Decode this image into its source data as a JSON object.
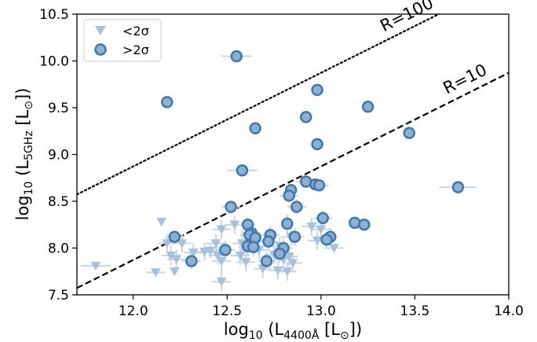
{
  "chart_data": {
    "type": "scatter",
    "xlabel_main": "log",
    "xlabel_sub": "10",
    "xlabel_paren_open": " (L",
    "xlabel_lsub": "4400Å",
    "xlabel_unit": " [L",
    "xlabel_odot": "⊙",
    "xlabel_close": "])",
    "ylabel_main": "log",
    "ylabel_sub": "10",
    "ylabel_paren_open": " (L",
    "ylabel_lsub": "5GHz",
    "ylabel_unit": " [L",
    "ylabel_odot": "⊙",
    "ylabel_close": "])",
    "xlim": [
      11.7,
      14.0
    ],
    "ylim": [
      7.5,
      10.5
    ],
    "xticks": [
      "12.0",
      "12.5",
      "13.0",
      "13.5",
      "14.0"
    ],
    "xtick_values": [
      12.0,
      12.5,
      13.0,
      13.5,
      14.0
    ],
    "yticks": [
      "7.5",
      "8.0",
      "8.5",
      "9.0",
      "9.5",
      "10.0",
      "10.5"
    ],
    "ytick_values": [
      7.5,
      8.0,
      8.5,
      9.0,
      9.5,
      10.0,
      10.5
    ],
    "legend": {
      "placement": "top-left",
      "items": [
        {
          "label": "<2σ",
          "marker": "triangle-down"
        },
        {
          "label": ">2σ",
          "marker": "circle"
        }
      ]
    },
    "colors": {
      "detected_fill": "#8fb0d0",
      "detected_edge": "#3d79ad",
      "upper_limit_fill": "#a9c1db",
      "errorbar": "#c4d6e8"
    },
    "reference_lines": [
      {
        "label": "R=100",
        "style": "dotted",
        "intercept_y": 8.573,
        "slope": 1
      },
      {
        "label": "R=10",
        "style": "dashed",
        "intercept_y": 7.573,
        "slope": 1
      }
    ],
    "series": [
      {
        "name": ">2σ",
        "marker": "circle",
        "points": [
          {
            "x": 12.55,
            "y": 10.05,
            "xerr": 0.08,
            "yerr": 0.0
          },
          {
            "x": 12.18,
            "y": 9.56,
            "xerr": 0.0,
            "yerr": 0.0
          },
          {
            "x": 12.98,
            "y": 9.69,
            "xerr": 0.0,
            "yerr": 0.05
          },
          {
            "x": 13.25,
            "y": 9.51,
            "xerr": 0.0,
            "yerr": 0.0
          },
          {
            "x": 12.92,
            "y": 9.4,
            "xerr": 0.0,
            "yerr": 0.0
          },
          {
            "x": 12.65,
            "y": 9.28,
            "xerr": 0.0,
            "yerr": 0.0
          },
          {
            "x": 13.47,
            "y": 9.23,
            "xerr": 0.0,
            "yerr": 0.0
          },
          {
            "x": 12.98,
            "y": 9.11,
            "xerr": 0.0,
            "yerr": 0.0
          },
          {
            "x": 12.58,
            "y": 8.83,
            "xerr": 0.08,
            "yerr": 0.0
          },
          {
            "x": 12.92,
            "y": 8.71,
            "xerr": 0.05,
            "yerr": 0.05
          },
          {
            "x": 12.97,
            "y": 8.68,
            "xerr": 0.04,
            "yerr": 0.0
          },
          {
            "x": 12.99,
            "y": 8.67,
            "xerr": 0.05,
            "yerr": 0.0
          },
          {
            "x": 13.73,
            "y": 8.65,
            "xerr": 0.1,
            "yerr": 0.0
          },
          {
            "x": 12.84,
            "y": 8.62,
            "xerr": 0.0,
            "yerr": 0.05
          },
          {
            "x": 12.83,
            "y": 8.56,
            "xerr": 0.05,
            "yerr": 0.05
          },
          {
            "x": 12.52,
            "y": 8.44,
            "xerr": 0.05,
            "yerr": 0.05
          },
          {
            "x": 12.87,
            "y": 8.44,
            "xerr": 0.05,
            "yerr": 0.08
          },
          {
            "x": 13.01,
            "y": 8.32,
            "xerr": 0.05,
            "yerr": 0.08
          },
          {
            "x": 12.61,
            "y": 8.25,
            "xerr": 0.04,
            "yerr": 0.08
          },
          {
            "x": 12.82,
            "y": 8.26,
            "xerr": 0.0,
            "yerr": 0.1
          },
          {
            "x": 13.18,
            "y": 8.27,
            "xerr": 0.0,
            "yerr": 0.0
          },
          {
            "x": 13.23,
            "y": 8.25,
            "xerr": 0.0,
            "yerr": 0.0
          },
          {
            "x": 12.63,
            "y": 8.16,
            "xerr": 0.05,
            "yerr": 0.1
          },
          {
            "x": 12.62,
            "y": 8.14,
            "xerr": 0.05,
            "yerr": 0.1
          },
          {
            "x": 12.73,
            "y": 8.14,
            "xerr": 0.05,
            "yerr": 0.1
          },
          {
            "x": 12.22,
            "y": 8.12,
            "xerr": 0.05,
            "yerr": 0.05
          },
          {
            "x": 12.65,
            "y": 8.11,
            "xerr": 0.0,
            "yerr": 0.1
          },
          {
            "x": 12.86,
            "y": 8.12,
            "xerr": 0.05,
            "yerr": 0.1
          },
          {
            "x": 13.05,
            "y": 8.12,
            "xerr": 0.0,
            "yerr": 0.1
          },
          {
            "x": 13.03,
            "y": 8.09,
            "xerr": 0.05,
            "yerr": 0.08
          },
          {
            "x": 12.72,
            "y": 8.07,
            "xerr": 0.05,
            "yerr": 0.1
          },
          {
            "x": 12.61,
            "y": 8.02,
            "xerr": 0.05,
            "yerr": 0.1
          },
          {
            "x": 12.64,
            "y": 8.01,
            "xerr": 0.05,
            "yerr": 0.1
          },
          {
            "x": 12.8,
            "y": 8.0,
            "xerr": 0.05,
            "yerr": 0.1
          },
          {
            "x": 12.49,
            "y": 7.98,
            "xerr": 0.05,
            "yerr": 0.1
          },
          {
            "x": 12.78,
            "y": 7.94,
            "xerr": 0.05,
            "yerr": 0.1
          },
          {
            "x": 12.31,
            "y": 7.86,
            "xerr": 0.05,
            "yerr": 0.08
          },
          {
            "x": 12.71,
            "y": 7.86,
            "xerr": 0.05,
            "yerr": 0.1
          }
        ]
      },
      {
        "name": "<2σ",
        "marker": "triangle-down",
        "points": [
          {
            "x": 11.8,
            "y": 7.81,
            "xerr": 0.08,
            "yerr": 0.0
          },
          {
            "x": 12.15,
            "y": 8.28,
            "xerr": 0.0,
            "yerr": 0.0
          },
          {
            "x": 12.18,
            "y": 8.05,
            "xerr": 0.05,
            "yerr": 0.1
          },
          {
            "x": 12.2,
            "y": 7.92,
            "xerr": 0.05,
            "yerr": 0.1
          },
          {
            "x": 12.23,
            "y": 7.88,
            "xerr": 0.05,
            "yerr": 0.1
          },
          {
            "x": 12.12,
            "y": 7.74,
            "xerr": 0.05,
            "yerr": 0.0
          },
          {
            "x": 12.22,
            "y": 7.75,
            "xerr": 0.0,
            "yerr": 0.0
          },
          {
            "x": 12.26,
            "y": 8.05,
            "xerr": 0.05,
            "yerr": 0.1
          },
          {
            "x": 12.32,
            "y": 7.95,
            "xerr": 0.05,
            "yerr": 0.1
          },
          {
            "x": 12.38,
            "y": 7.96,
            "xerr": 0.05,
            "yerr": 0.1
          },
          {
            "x": 12.41,
            "y": 7.97,
            "xerr": 0.05,
            "yerr": 0.08
          },
          {
            "x": 12.44,
            "y": 8.05,
            "xerr": 0.05,
            "yerr": 0.1
          },
          {
            "x": 12.45,
            "y": 7.92,
            "xerr": 0.05,
            "yerr": 0.1
          },
          {
            "x": 12.47,
            "y": 7.86,
            "xerr": 0.05,
            "yerr": 0.15
          },
          {
            "x": 12.47,
            "y": 8.2,
            "xerr": 0.05,
            "yerr": 0.1
          },
          {
            "x": 12.47,
            "y": 7.64,
            "xerr": 0.05,
            "yerr": 0.1
          },
          {
            "x": 12.54,
            "y": 8.25,
            "xerr": 0.05,
            "yerr": 0.1
          },
          {
            "x": 12.57,
            "y": 7.92,
            "xerr": 0.05,
            "yerr": 0.1
          },
          {
            "x": 12.58,
            "y": 8.05,
            "xerr": 0.05,
            "yerr": 0.15
          },
          {
            "x": 12.6,
            "y": 7.85,
            "xerr": 0.05,
            "yerr": 0.1
          },
          {
            "x": 12.67,
            "y": 7.98,
            "xerr": 0.05,
            "yerr": 0.1
          },
          {
            "x": 12.69,
            "y": 7.78,
            "xerr": 0.05,
            "yerr": 0.1
          },
          {
            "x": 12.75,
            "y": 7.93,
            "xerr": 0.05,
            "yerr": 0.1
          },
          {
            "x": 12.78,
            "y": 8.02,
            "xerr": 0.05,
            "yerr": 0.1
          },
          {
            "x": 12.8,
            "y": 7.88,
            "xerr": 0.05,
            "yerr": 0.1
          },
          {
            "x": 12.83,
            "y": 7.91,
            "xerr": 0.05,
            "yerr": 0.1
          },
          {
            "x": 12.84,
            "y": 8.12,
            "xerr": 0.05,
            "yerr": 0.1
          },
          {
            "x": 12.85,
            "y": 7.84,
            "xerr": 0.05,
            "yerr": 0.1
          },
          {
            "x": 12.77,
            "y": 7.76,
            "xerr": 0.05,
            "yerr": 0.1
          },
          {
            "x": 12.82,
            "y": 7.75,
            "xerr": 0.05,
            "yerr": 0.1
          },
          {
            "x": 12.95,
            "y": 8.23,
            "xerr": 0.05,
            "yerr": 0.1
          },
          {
            "x": 12.98,
            "y": 8.08,
            "xerr": 0.05,
            "yerr": 0.1
          },
          {
            "x": 13.0,
            "y": 8.2,
            "xerr": 0.05,
            "yerr": 0.1
          },
          {
            "x": 13.07,
            "y": 8.0,
            "xerr": 0.05,
            "yerr": 0.0
          }
        ]
      }
    ]
  }
}
